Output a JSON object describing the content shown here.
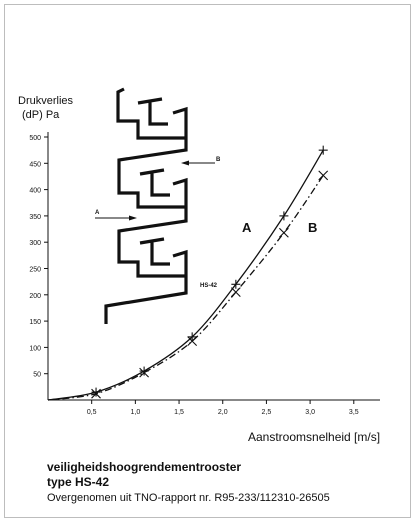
{
  "chart_data": {
    "type": "line",
    "ylabel_line1": "Drukverlies",
    "ylabel_line2": "(dP) Pa",
    "xlabel": "Aanstroomsnelheid [m/s]",
    "xlim": [
      0,
      3.8
    ],
    "ylim": [
      0,
      500
    ],
    "x_ticks": [
      "0,5",
      "1,0",
      "1,5",
      "2,0",
      "2,5",
      "3,0",
      "3,5"
    ],
    "x_tick_values": [
      0.5,
      1.0,
      1.5,
      2.0,
      2.5,
      3.0,
      3.5
    ],
    "y_ticks": [
      "50",
      "100",
      "150",
      "200",
      "250",
      "300",
      "350",
      "400",
      "450",
      "500"
    ],
    "y_tick_values": [
      50,
      100,
      150,
      200,
      250,
      300,
      350,
      400,
      450,
      500
    ],
    "grid": false,
    "series": [
      {
        "name": "A",
        "style": "solid",
        "marker": "+",
        "color": "#111111",
        "x": [
          0.55,
          1.1,
          1.65,
          2.15,
          2.7,
          3.15
        ],
        "y": [
          15,
          55,
          120,
          220,
          350,
          475
        ]
      },
      {
        "name": "B",
        "style": "dash-dot",
        "marker": "x",
        "color": "#111111",
        "x": [
          0.55,
          1.1,
          1.65,
          2.15,
          2.7,
          3.15
        ],
        "y": [
          12,
          52,
          112,
          205,
          318,
          427
        ]
      }
    ],
    "annotations": {
      "model": "HS-42",
      "label_a": "A",
      "label_b": "B"
    }
  },
  "diagram": {
    "arrow_a": "A",
    "arrow_b": "B"
  },
  "caption": {
    "title": "veiligheidshoogrendementrooster",
    "subtitle": "type HS-42",
    "note": "Overgenomen uit TNO-rapport nr. R95-233/112310-26505"
  }
}
